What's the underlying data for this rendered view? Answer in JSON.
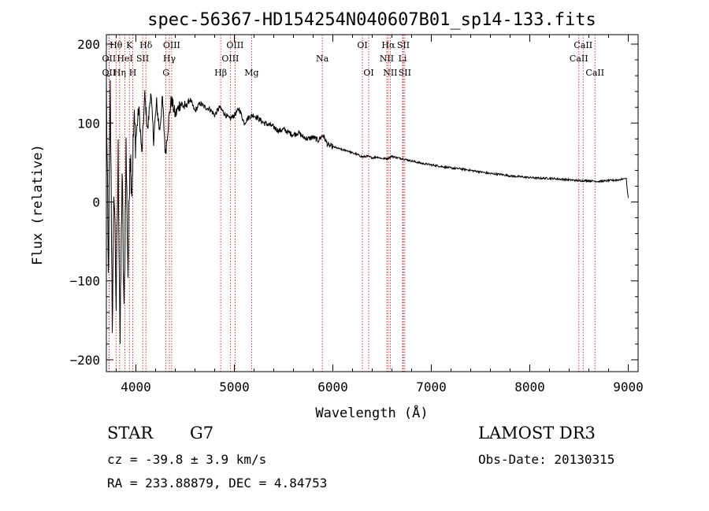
{
  "chart_data": {
    "type": "line",
    "title": "spec-56367-HD154254N040607B01_sp14-133.fits",
    "xlabel": "Wavelength (Å)",
    "ylabel": "Flux (relative)",
    "xlim": [
      3700,
      9100
    ],
    "ylim": [
      -215,
      212
    ],
    "x_ticks": [
      4000,
      5000,
      6000,
      7000,
      8000,
      9000
    ],
    "y_ticks": [
      -200,
      -100,
      0,
      100,
      200
    ],
    "series": [
      {
        "name": "Flux",
        "x": [
          3700,
          3720,
          3740,
          3760,
          3780,
          3800,
          3820,
          3840,
          3860,
          3880,
          3900,
          3920,
          3940,
          3960,
          3980,
          4000,
          4030,
          4060,
          4090,
          4120,
          4150,
          4180,
          4210,
          4240,
          4270,
          4300,
          4330,
          4360,
          4400,
          4450,
          4500,
          4550,
          4600,
          4650,
          4700,
          4750,
          4800,
          4850,
          4900,
          4950,
          5000,
          5050,
          5100,
          5150,
          5200,
          5250,
          5300,
          5350,
          5400,
          5450,
          5500,
          5550,
          5600,
          5650,
          5700,
          5750,
          5800,
          5850,
          5900,
          5950,
          6000,
          6050,
          6100,
          6150,
          6200,
          6250,
          6300,
          6350,
          6400,
          6450,
          6500,
          6550,
          6600,
          6650,
          6700,
          6800,
          6900,
          7000,
          7100,
          7200,
          7300,
          7400,
          7500,
          7600,
          7700,
          7800,
          7900,
          8000,
          8100,
          8200,
          8300,
          8400,
          8500,
          8600,
          8700,
          8800,
          8900,
          8980,
          8990,
          9000
        ],
        "y": [
          150,
          -100,
          140,
          -150,
          20,
          -130,
          60,
          -180,
          40,
          -150,
          70,
          -90,
          70,
          20,
          100,
          80,
          120,
          60,
          135,
          90,
          140,
          80,
          125,
          90,
          130,
          60,
          100,
          130,
          110,
          125,
          120,
          130,
          115,
          125,
          120,
          118,
          110,
          120,
          112,
          105,
          110,
          118,
          100,
          108,
          110,
          105,
          100,
          98,
          95,
          90,
          92,
          88,
          85,
          88,
          82,
          80,
          82,
          78,
          85,
          72,
          70,
          68,
          66,
          65,
          62,
          60,
          57,
          58,
          56,
          57,
          55,
          55,
          58,
          56,
          55,
          52,
          49,
          47,
          45,
          43,
          42,
          40,
          38,
          36,
          35,
          33,
          32,
          31,
          30,
          30,
          29,
          28,
          27,
          27,
          26,
          27,
          28,
          30,
          15,
          5
        ]
      }
    ],
    "lines": [
      {
        "label": "Hθ",
        "x": 3798,
        "row": 1
      },
      {
        "label": "OII",
        "x": 3727,
        "row": 2
      },
      {
        "label": "OII",
        "x": 3727,
        "row": 3
      },
      {
        "label": "Hη",
        "x": 3835,
        "row": 3
      },
      {
        "label": "HeI",
        "x": 3889,
        "row": 2
      },
      {
        "label": "K",
        "x": 3934,
        "row": 1
      },
      {
        "label": "H",
        "x": 3968,
        "row": 3
      },
      {
        "label": "SII",
        "x": 4069,
        "row": 2
      },
      {
        "label": "Hδ",
        "x": 4102,
        "row": 1
      },
      {
        "label": "OIII",
        "x": 4363,
        "row": 1
      },
      {
        "label": "Hγ",
        "x": 4340,
        "row": 2
      },
      {
        "label": "G",
        "x": 4305,
        "row": 3
      },
      {
        "label": "Hβ",
        "x": 4861,
        "row": 3
      },
      {
        "label": "OIII",
        "x": 5007,
        "row": 1
      },
      {
        "label": "OIII",
        "x": 4959,
        "row": 2
      },
      {
        "label": "Mg",
        "x": 5175,
        "row": 3
      },
      {
        "label": "Na",
        "x": 5893,
        "row": 2
      },
      {
        "label": "OI",
        "x": 6300,
        "row": 1
      },
      {
        "label": "OI",
        "x": 6364,
        "row": 3
      },
      {
        "label": "Hα",
        "x": 6563,
        "row": 1
      },
      {
        "label": "NII",
        "x": 6548,
        "row": 2
      },
      {
        "label": "NII",
        "x": 6583,
        "row": 3
      },
      {
        "label": "SII",
        "x": 6716,
        "row": 1
      },
      {
        "label": "Li",
        "x": 6708,
        "row": 2
      },
      {
        "label": "SII",
        "x": 6731,
        "row": 3
      },
      {
        "label": "CaII",
        "x": 8542,
        "row": 1
      },
      {
        "label": "CaII",
        "x": 8498,
        "row": 2
      },
      {
        "label": "CaII",
        "x": 8662,
        "row": 3
      }
    ],
    "line_color": "#cc0000",
    "spectrum_color": "#000000"
  },
  "info": {
    "class": "STAR",
    "subclass": "G7",
    "survey": "LAMOST DR3",
    "cz": "cz = -39.8 ± 3.9 km/s",
    "obs_date": "Obs-Date: 20130315",
    "coords": "RA = 233.88879, DEC =   4.84753"
  }
}
